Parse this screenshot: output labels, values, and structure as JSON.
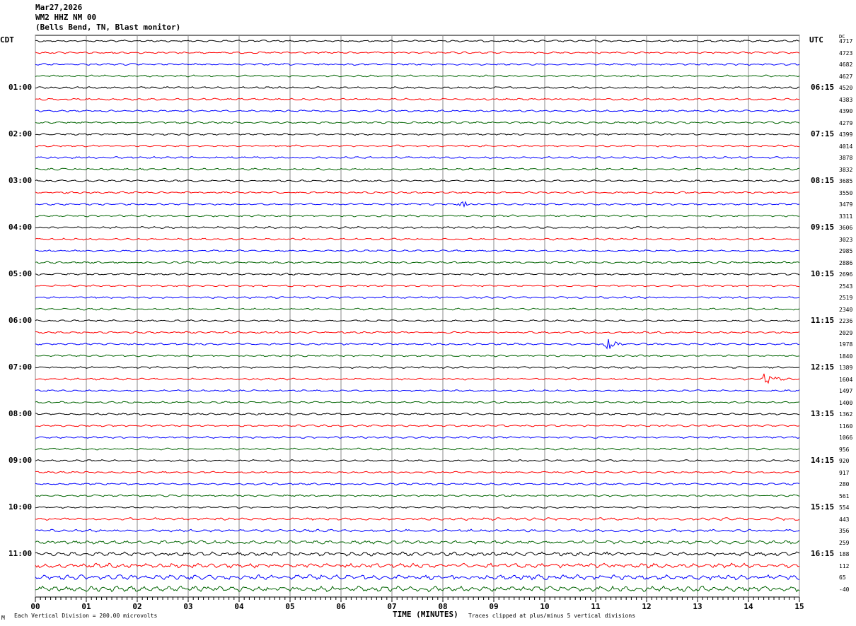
{
  "header": {
    "date": "Mar27,2026",
    "station": "WM2 HHZ NM 00",
    "location": "(Bells Bend, TN, Blast monitor)"
  },
  "left_tz": "CDT",
  "right_tz": "UTC",
  "dc_label": "DC",
  "footer": {
    "scale": "Each Vertical Division =  200.00 microvolts",
    "xlabel": "TIME (MINUTES)",
    "clip_note": "Traces clipped at plus/minus 5 vertical divisions",
    "corner": "M"
  },
  "chart_data": {
    "type": "line",
    "title": "WM2 HHZ NM 00 helicorder",
    "xlabel": "TIME (MINUTES)",
    "xlim": [
      0,
      15
    ],
    "x_ticks": [
      "00",
      "01",
      "02",
      "03",
      "04",
      "05",
      "06",
      "07",
      "08",
      "09",
      "10",
      "11",
      "12",
      "13",
      "14",
      "15"
    ],
    "left_hour_labels": [
      "01:00",
      "02:00",
      "03:00",
      "04:00",
      "05:00",
      "06:00",
      "07:00",
      "08:00",
      "09:00",
      "10:00",
      "11:00"
    ],
    "right_hour_labels": [
      "06:15",
      "07:15",
      "08:15",
      "09:15",
      "10:15",
      "11:15",
      "12:15",
      "13:15",
      "14:15",
      "15:15",
      "16:15"
    ],
    "trace_count": 48,
    "trace_colors": [
      "#000000",
      "#ff0000",
      "#0000ff",
      "#006400"
    ],
    "dc_offsets": [
      "4717",
      "4723",
      "4682",
      "4627",
      "4520",
      "4383",
      "4390",
      "4279",
      "4399",
      "4014",
      "3878",
      "3832",
      "3685",
      "3550",
      "3479",
      "3311",
      "3606",
      "3023",
      "2985",
      "2886",
      "2696",
      "2543",
      "2519",
      "2340",
      "2236",
      "2029",
      "1978",
      "1840",
      "1389",
      "1604",
      "1497",
      "1400",
      "1362",
      "1160",
      "1066",
      "956",
      "920",
      "917",
      "280",
      "561",
      "554",
      "443",
      "356",
      "259",
      "188",
      "112",
      "65",
      "-40"
    ],
    "events": [
      {
        "trace": 14,
        "minute": 8.4,
        "amplitude": 0.6
      },
      {
        "trace": 26,
        "minute": 11.25,
        "amplitude": 0.9
      },
      {
        "trace": 29,
        "minute": 14.35,
        "amplitude": 1.2
      }
    ]
  }
}
